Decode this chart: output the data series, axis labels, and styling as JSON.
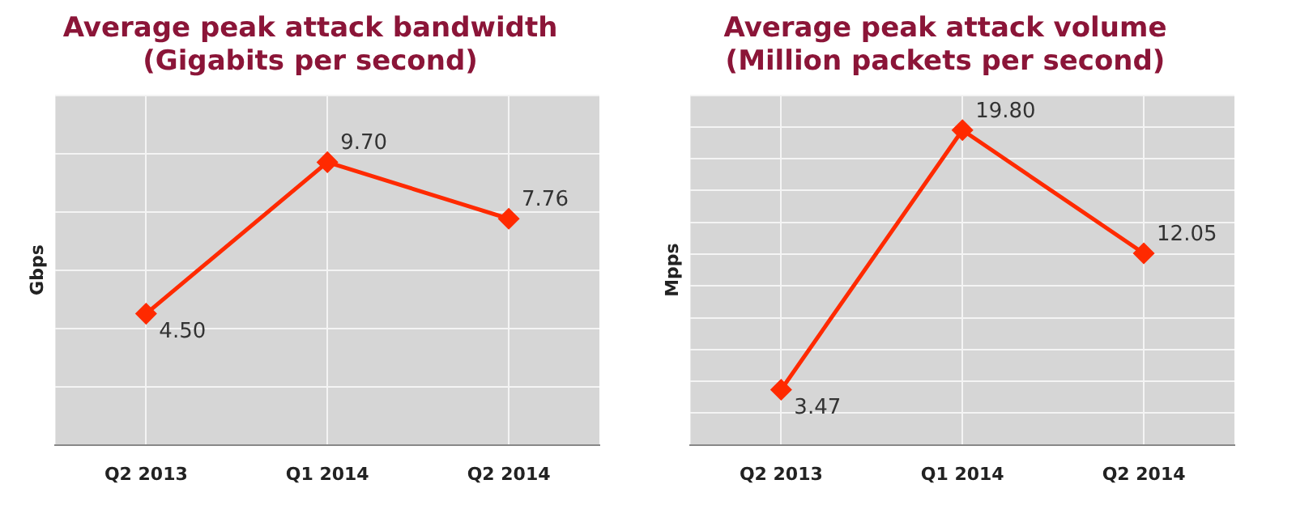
{
  "chart_data": [
    {
      "type": "line",
      "title": "Average peak attack bandwidth\n(Gigabits per second)",
      "ylabel": "Gbps",
      "categories": [
        "Q2 2013",
        "Q1 2014",
        "Q2 2014"
      ],
      "values": [
        4.5,
        9.7,
        7.76
      ],
      "value_labels": [
        "4.50",
        "9.70",
        "7.76"
      ],
      "color": "#ff2a00",
      "ylim": [
        0,
        12
      ],
      "yticks": [
        {
          "value": 0,
          "label": null
        },
        {
          "value": 2,
          "label": null
        },
        {
          "value": 4,
          "label": null
        },
        {
          "value": 6,
          "label": null
        },
        {
          "value": 8,
          "label": null
        },
        {
          "value": 10,
          "label": null
        },
        {
          "value": 12,
          "label": null
        }
      ],
      "tick_labels": "x",
      "grid": true,
      "legend": false,
      "marker": "diamond",
      "line_style": "solid"
    },
    {
      "type": "line",
      "title": "Average peak attack volume\n(Million packets per second)",
      "ylabel": "Mpps",
      "categories": [
        "Q2 2013",
        "Q1 2014",
        "Q2 2014"
      ],
      "values": [
        3.47,
        19.8,
        12.05
      ],
      "value_labels": [
        "3.47",
        "19.80",
        "12.05"
      ],
      "color": "#ff2a00",
      "ylim": [
        0,
        22
      ],
      "yticks": [
        {
          "value": 0,
          "label": null
        },
        {
          "value": 2,
          "label": null
        },
        {
          "value": 4,
          "label": null
        },
        {
          "value": 6,
          "label": null
        },
        {
          "value": 8,
          "label": null
        },
        {
          "value": 10,
          "label": null
        },
        {
          "value": 12,
          "label": null
        },
        {
          "value": 14,
          "label": null
        },
        {
          "value": 16,
          "label": null
        },
        {
          "value": 18,
          "label": null
        },
        {
          "value": 20,
          "label": null
        },
        {
          "value": 22,
          "label": null
        }
      ],
      "tick_labels": "x",
      "grid": true,
      "legend": false,
      "marker": "diamond",
      "line_style": "solid"
    }
  ]
}
